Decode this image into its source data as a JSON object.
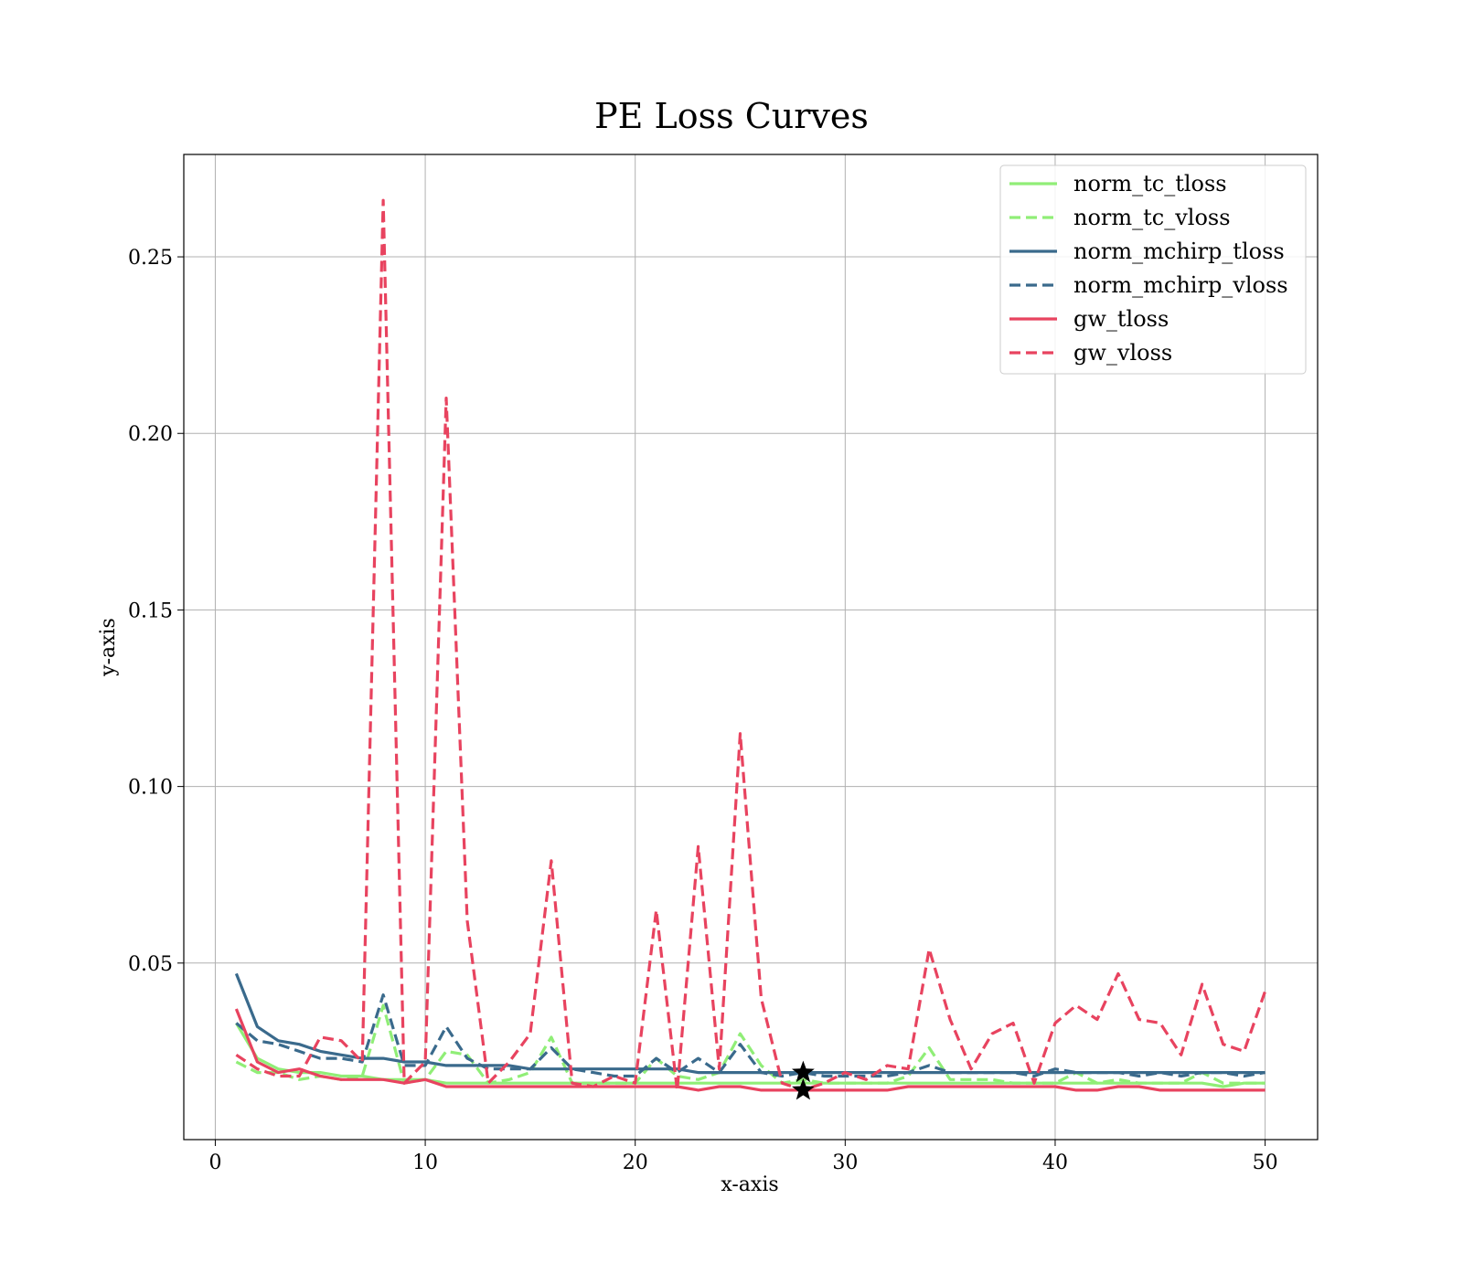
{
  "chart_data": {
    "type": "line",
    "title": "PE Loss Curves",
    "xlabel": "x-axis",
    "ylabel": "y-axis",
    "xlim": [
      -1.5,
      52.5
    ],
    "ylim": [
      0.0,
      0.279
    ],
    "x_ticks": [
      0,
      10,
      20,
      30,
      40,
      50
    ],
    "x_tick_labels": [
      "0",
      "10",
      "20",
      "30",
      "40",
      "50"
    ],
    "y_ticks": [
      0.05,
      0.1,
      0.15,
      0.2,
      0.25
    ],
    "y_tick_labels": [
      "0.05",
      "0.10",
      "0.15",
      "0.20",
      "0.25"
    ],
    "grid": true,
    "legend_position": "top-right",
    "x": [
      1,
      2,
      3,
      4,
      5,
      6,
      7,
      8,
      9,
      10,
      11,
      12,
      13,
      14,
      15,
      16,
      17,
      18,
      19,
      20,
      21,
      22,
      23,
      24,
      25,
      26,
      27,
      28,
      29,
      30,
      31,
      32,
      33,
      34,
      35,
      36,
      37,
      38,
      39,
      40,
      41,
      42,
      43,
      44,
      45,
      46,
      47,
      48,
      49,
      50
    ],
    "series": [
      {
        "name": "norm_tc_tloss",
        "color": "#90ee77",
        "dash": "solid",
        "values": [
          0.033,
          0.023,
          0.02,
          0.019,
          0.019,
          0.018,
          0.018,
          0.017,
          0.017,
          0.017,
          0.016,
          0.016,
          0.016,
          0.016,
          0.016,
          0.016,
          0.016,
          0.016,
          0.016,
          0.016,
          0.016,
          0.016,
          0.016,
          0.016,
          0.016,
          0.016,
          0.016,
          0.016,
          0.016,
          0.016,
          0.016,
          0.016,
          0.016,
          0.016,
          0.016,
          0.016,
          0.016,
          0.016,
          0.016,
          0.016,
          0.016,
          0.016,
          0.016,
          0.016,
          0.016,
          0.016,
          0.016,
          0.015,
          0.016,
          0.016
        ]
      },
      {
        "name": "norm_tc_vloss",
        "color": "#90ee77",
        "dash": "dashed",
        "values": [
          0.022,
          0.019,
          0.019,
          0.017,
          0.018,
          0.017,
          0.018,
          0.038,
          0.016,
          0.017,
          0.025,
          0.024,
          0.016,
          0.017,
          0.019,
          0.029,
          0.016,
          0.016,
          0.016,
          0.016,
          0.023,
          0.018,
          0.017,
          0.019,
          0.03,
          0.021,
          0.016,
          0.017,
          0.016,
          0.016,
          0.016,
          0.016,
          0.018,
          0.026,
          0.017,
          0.017,
          0.017,
          0.016,
          0.016,
          0.016,
          0.019,
          0.016,
          0.017,
          0.016,
          0.016,
          0.016,
          0.019,
          0.016,
          0.016,
          0.016
        ]
      },
      {
        "name": "norm_mchirp_tloss",
        "color": "#3a6a8c",
        "dash": "solid",
        "values": [
          0.047,
          0.032,
          0.028,
          0.027,
          0.025,
          0.024,
          0.023,
          0.023,
          0.022,
          0.022,
          0.021,
          0.021,
          0.021,
          0.021,
          0.02,
          0.02,
          0.02,
          0.02,
          0.02,
          0.02,
          0.02,
          0.02,
          0.019,
          0.019,
          0.019,
          0.019,
          0.019,
          0.019,
          0.019,
          0.019,
          0.019,
          0.019,
          0.019,
          0.019,
          0.019,
          0.019,
          0.019,
          0.019,
          0.019,
          0.019,
          0.019,
          0.019,
          0.019,
          0.019,
          0.019,
          0.019,
          0.019,
          0.019,
          0.019,
          0.019
        ]
      },
      {
        "name": "norm_mchirp_vloss",
        "color": "#3a6a8c",
        "dash": "dashed",
        "values": [
          0.033,
          0.028,
          0.027,
          0.025,
          0.023,
          0.023,
          0.022,
          0.041,
          0.021,
          0.021,
          0.032,
          0.023,
          0.02,
          0.02,
          0.02,
          0.026,
          0.02,
          0.019,
          0.018,
          0.018,
          0.023,
          0.019,
          0.023,
          0.019,
          0.027,
          0.019,
          0.018,
          0.019,
          0.018,
          0.018,
          0.018,
          0.018,
          0.019,
          0.021,
          0.019,
          0.019,
          0.019,
          0.019,
          0.018,
          0.02,
          0.019,
          0.019,
          0.019,
          0.018,
          0.019,
          0.018,
          0.019,
          0.019,
          0.018,
          0.019
        ]
      },
      {
        "name": "gw_tloss",
        "color": "#e8435f",
        "dash": "solid",
        "values": [
          0.037,
          0.022,
          0.019,
          0.02,
          0.018,
          0.017,
          0.017,
          0.017,
          0.016,
          0.017,
          0.015,
          0.015,
          0.015,
          0.015,
          0.015,
          0.015,
          0.015,
          0.015,
          0.015,
          0.015,
          0.015,
          0.015,
          0.014,
          0.015,
          0.015,
          0.014,
          0.014,
          0.014,
          0.014,
          0.014,
          0.014,
          0.014,
          0.015,
          0.015,
          0.015,
          0.015,
          0.015,
          0.015,
          0.015,
          0.015,
          0.014,
          0.014,
          0.015,
          0.015,
          0.014,
          0.014,
          0.014,
          0.014,
          0.014,
          0.014
        ]
      },
      {
        "name": "gw_vloss",
        "color": "#e8435f",
        "dash": "dashed",
        "values": [
          0.024,
          0.02,
          0.018,
          0.018,
          0.029,
          0.028,
          0.022,
          0.266,
          0.016,
          0.022,
          0.21,
          0.062,
          0.016,
          0.022,
          0.03,
          0.079,
          0.016,
          0.015,
          0.018,
          0.016,
          0.065,
          0.014,
          0.083,
          0.02,
          0.115,
          0.04,
          0.016,
          0.014,
          0.016,
          0.019,
          0.017,
          0.021,
          0.02,
          0.054,
          0.034,
          0.02,
          0.03,
          0.033,
          0.016,
          0.033,
          0.038,
          0.034,
          0.047,
          0.034,
          0.033,
          0.024,
          0.044,
          0.027,
          0.025,
          0.042
        ]
      }
    ],
    "markers": [
      {
        "x": 28,
        "y": 0.019,
        "symbol": "star",
        "color": "#000000"
      },
      {
        "x": 28,
        "y": 0.014,
        "symbol": "star",
        "color": "#000000"
      }
    ]
  }
}
